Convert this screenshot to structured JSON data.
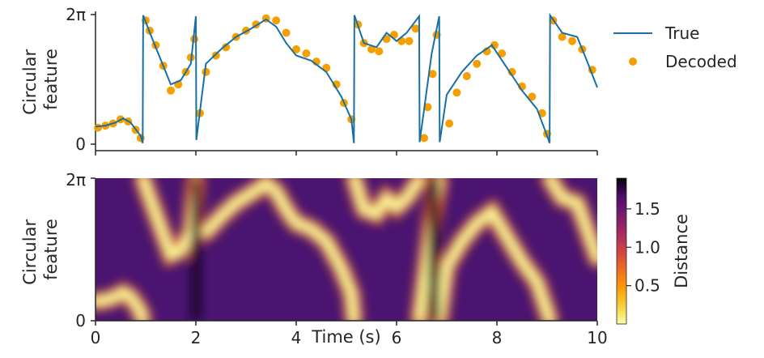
{
  "chart_data": [
    {
      "type": "line",
      "ylabel": "Circular feature",
      "xlim": [
        0,
        10
      ],
      "ylim": [
        0,
        6.2832
      ],
      "yticks": [
        "0",
        "2π"
      ],
      "legend": {
        "placement": "right",
        "entries": [
          "True",
          "Decoded"
        ]
      },
      "colors": {
        "true": "#1a6fa3",
        "decoded": "#f5a000"
      },
      "series": [
        {
          "name": "True",
          "x": [
            0,
            0.2,
            0.4,
            0.55,
            0.7,
            0.9,
            0.94,
            0.95,
            1.1,
            1.3,
            1.5,
            1.7,
            1.9,
            2.0,
            2.01,
            2.2,
            2.5,
            2.8,
            3.1,
            3.4,
            3.6,
            3.8,
            4.0,
            4.3,
            4.6,
            4.9,
            5.1,
            5.15,
            5.16,
            5.35,
            5.6,
            5.8,
            6.0,
            6.2,
            6.45,
            6.46,
            6.6,
            6.7,
            6.85,
            6.86,
            7.0,
            7.3,
            7.6,
            7.9,
            8.2,
            8.5,
            8.8,
            9.0,
            9.05,
            9.06,
            9.3,
            9.6,
            9.8,
            10.0
          ],
          "values": [
            0.85,
            0.9,
            1.05,
            1.25,
            1.05,
            0.4,
            0.05,
            6.25,
            5.3,
            4.1,
            2.9,
            3.1,
            3.9,
            6.2,
            0.2,
            3.9,
            4.6,
            5.2,
            5.6,
            6.05,
            5.7,
            4.9,
            4.3,
            4.05,
            3.5,
            2.3,
            1.2,
            0.05,
            6.25,
            4.9,
            4.7,
            5.4,
            5.0,
            5.4,
            6.2,
            0.1,
            2.6,
            4.4,
            6.2,
            0.1,
            2.4,
            3.5,
            4.3,
            4.8,
            3.7,
            2.6,
            1.7,
            0.4,
            0.05,
            6.25,
            5.4,
            5.2,
            4.0,
            2.75
          ]
        },
        {
          "name": "Decoded",
          "x": [
            0.05,
            0.2,
            0.35,
            0.5,
            0.65,
            0.8,
            0.9,
            1.0,
            1.08,
            1.2,
            1.35,
            1.5,
            1.65,
            1.8,
            1.9,
            1.97,
            2.08,
            2.2,
            2.4,
            2.6,
            2.8,
            3.0,
            3.2,
            3.4,
            3.6,
            3.8,
            4.0,
            4.2,
            4.4,
            4.6,
            4.8,
            4.95,
            5.1,
            5.23,
            5.35,
            5.5,
            5.65,
            5.8,
            5.95,
            6.1,
            6.25,
            6.38,
            6.55,
            6.62,
            6.72,
            6.8,
            7.05,
            7.2,
            7.4,
            7.6,
            7.8,
            7.95,
            8.1,
            8.3,
            8.5,
            8.7,
            8.9,
            9.0,
            9.12,
            9.3,
            9.5,
            9.7,
            9.9
          ],
          "values": [
            0.8,
            0.9,
            1.0,
            1.2,
            1.1,
            0.7,
            0.3,
            6.0,
            5.5,
            4.8,
            3.8,
            2.6,
            2.9,
            3.5,
            4.2,
            5.1,
            1.5,
            3.5,
            4.3,
            4.7,
            5.2,
            5.5,
            5.8,
            6.1,
            6.0,
            5.4,
            4.6,
            4.4,
            4.0,
            3.7,
            2.9,
            2.0,
            1.2,
            5.8,
            4.9,
            4.6,
            4.5,
            5.1,
            5.3,
            5.0,
            5.0,
            5.6,
            0.3,
            1.8,
            3.4,
            5.3,
            1.0,
            2.5,
            3.3,
            3.9,
            4.5,
            4.8,
            4.4,
            3.5,
            2.8,
            2.3,
            1.5,
            0.5,
            6.0,
            5.2,
            5.0,
            4.6,
            3.6
          ]
        }
      ]
    },
    {
      "type": "heatmap",
      "xlabel": "Time (s)",
      "ylabel": "Circular feature",
      "xlim": [
        0,
        10
      ],
      "ylim": [
        0,
        6.2832
      ],
      "xticks": [
        "0",
        "2",
        "4",
        "6",
        "8",
        "10"
      ],
      "yticks": [
        "0",
        "2π"
      ],
      "colorbar": {
        "label": "Distance",
        "ticks": [
          "0.5",
          "1.0",
          "1.5"
        ],
        "range": [
          0,
          1.9
        ],
        "placement": "right"
      }
    }
  ]
}
